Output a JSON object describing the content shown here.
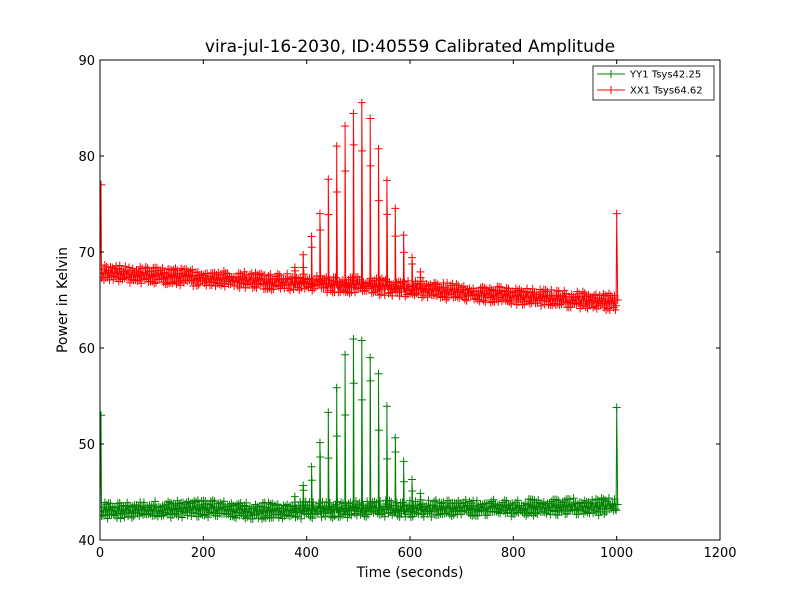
{
  "chart_data": {
    "type": "line",
    "title": "vira-jul-16-2030, ID:40559 Calibrated Amplitude",
    "xlabel": "Time (seconds)",
    "ylabel": "Power in Kelvin",
    "xlim": [
      0,
      1200
    ],
    "ylim": [
      40,
      90
    ],
    "xticks": [
      0,
      200,
      400,
      600,
      800,
      1000,
      1200
    ],
    "yticks": [
      40,
      50,
      60,
      70,
      80,
      90
    ],
    "grid": false,
    "legend_position": "top-right",
    "marker": "+",
    "series": [
      {
        "name": "YY1 Tsys42.25",
        "color": "#008000",
        "x_range": [
          0,
          1000
        ],
        "baseline": [
          [
            0,
            43.0
          ],
          [
            200,
            43.3
          ],
          [
            300,
            43.0
          ],
          [
            500,
            43.2
          ],
          [
            700,
            43.3
          ],
          [
            1000,
            43.5
          ]
        ],
        "pulse": {
          "center": 500,
          "sigma": 55,
          "peak": 61.5
        },
        "edge_spikes": [
          [
            2,
            53.0
          ],
          [
            1000,
            53.8
          ]
        ]
      },
      {
        "name": "XX1 Tsys64.62",
        "color": "#ff0000",
        "x_range": [
          0,
          1000
        ],
        "baseline": [
          [
            0,
            67.8
          ],
          [
            200,
            67.3
          ],
          [
            400,
            66.8
          ],
          [
            600,
            66.2
          ],
          [
            800,
            65.4
          ],
          [
            1000,
            64.8
          ]
        ],
        "pulse": {
          "center": 500,
          "sigma": 55,
          "peak": 86.0
        },
        "edge_spikes": [
          [
            2,
            77.0
          ],
          [
            1000,
            74.0
          ]
        ]
      }
    ]
  }
}
